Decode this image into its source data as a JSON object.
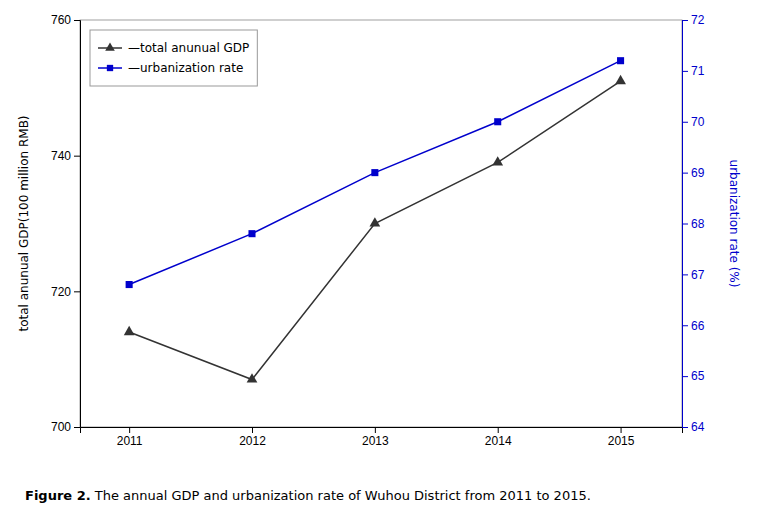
{
  "chart_data": {
    "type": "line",
    "x": [
      2011,
      2012,
      2013,
      2014,
      2015
    ],
    "xlim": [
      2010.6,
      2015.5
    ],
    "xticks": [
      2011,
      2012,
      2013,
      2014,
      2015
    ],
    "y_label": "total anunual GDP(100 million RMB)",
    "ylim": [
      700,
      760
    ],
    "yticks": [
      700,
      720,
      740,
      760
    ],
    "y2_label": "urbanization rate (%)",
    "y2lim": [
      64,
      72
    ],
    "y2ticks": [
      64,
      65,
      66,
      67,
      68,
      69,
      70,
      71,
      72
    ],
    "series": [
      {
        "name": "—total anunual GDP",
        "color": "#333333",
        "marker": "triangle",
        "values": [
          714,
          707,
          730,
          739,
          751
        ]
      },
      {
        "name": "—urbanization rate",
        "color": "#0000cc",
        "marker": "square",
        "axis": "y2",
        "values": [
          66.8,
          67.8,
          69.0,
          70.0,
          71.2
        ]
      }
    ],
    "annotations": [
      "Figure 2.",
      " The annual GDP and urbanization rate of Wuhou District from 2011 to 2015."
    ],
    "legend": "upper left",
    "grid": false
  }
}
